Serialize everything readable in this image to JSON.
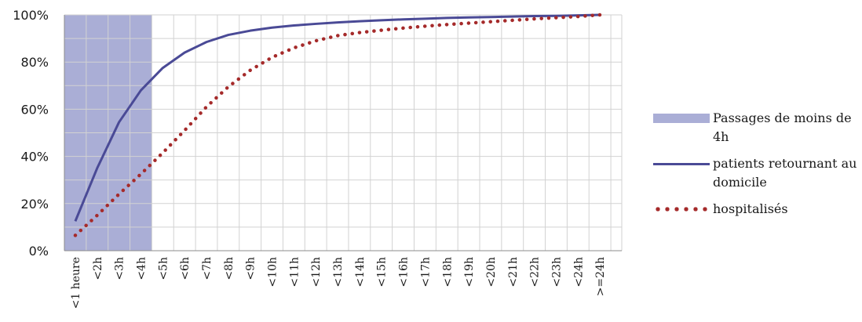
{
  "chart_data": {
    "type": "line",
    "categories": [
      "<1 heure",
      "<2h",
      "<3h",
      "<4h",
      "<5h",
      "<6h",
      "<7h",
      "<8h",
      "<9h",
      "<10h",
      "<11h",
      "<12h",
      "<13h",
      "<14h",
      "<15h",
      "<16h",
      "<17h",
      "<18h",
      "<19h",
      "<20h",
      "<21h",
      "<22h",
      "<23h",
      "<24h",
      ">=24h"
    ],
    "ylim": [
      0,
      100
    ],
    "yticks": [
      "0%",
      "20%",
      "40%",
      "60%",
      "80%",
      "100%"
    ],
    "grid": true,
    "legend_position": "right",
    "highlight": {
      "name": "Passages de moins de 4h",
      "from": "<1 heure",
      "to": "<4h",
      "color": "#aaaed6"
    },
    "series": [
      {
        "name": "patients retournant au domicile",
        "style": "solid",
        "color": "#4a4a96",
        "values": [
          12.5,
          35,
          54.5,
          68,
          77.5,
          84,
          88.5,
          91.5,
          93.3,
          94.6,
          95.5,
          96.2,
          96.8,
          97.3,
          97.7,
          98.1,
          98.4,
          98.7,
          98.9,
          99.1,
          99.3,
          99.5,
          99.6,
          99.8,
          100
        ]
      },
      {
        "name": "hospitalisés",
        "style": "dotted",
        "color": "#a52a2a",
        "values": [
          6.5,
          15,
          24,
          32.5,
          41.5,
          51,
          61,
          69.5,
          76.5,
          82,
          86,
          89,
          91.2,
          92.5,
          93.5,
          94.4,
          95.2,
          95.9,
          96.5,
          97.1,
          97.7,
          98.3,
          98.8,
          99.3,
          100
        ]
      }
    ]
  },
  "legend": [
    {
      "label": "Passages de moins de 4h",
      "kind": "area"
    },
    {
      "label": "patients retournant au domicile",
      "kind": "line"
    },
    {
      "label": "hospitalisés",
      "kind": "dots"
    }
  ]
}
